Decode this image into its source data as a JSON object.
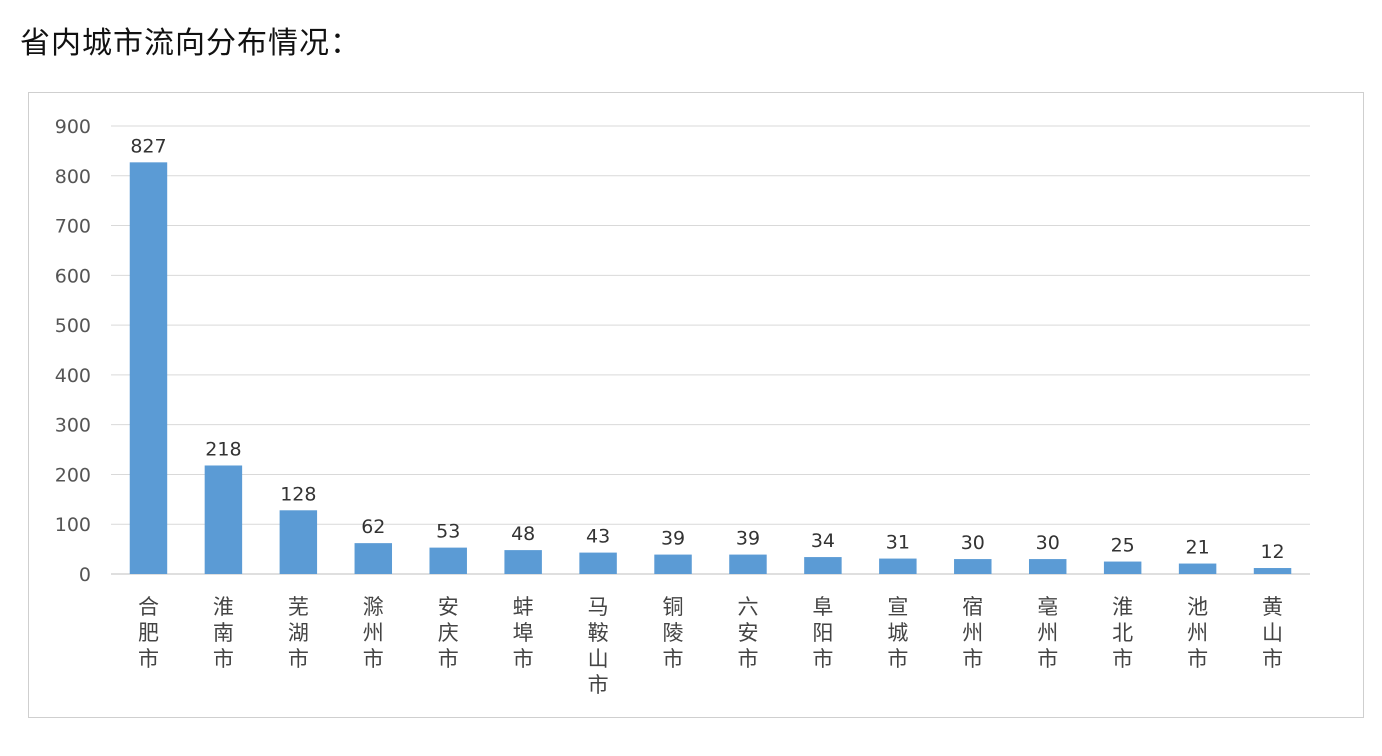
{
  "heading": "省内城市流向分布情况：",
  "colors": {
    "bar": "#5b9bd5",
    "grid": "#d9d9d9",
    "axis": "#bfbfbf"
  },
  "chart_data": {
    "type": "bar",
    "title": "",
    "xlabel": "",
    "ylabel": "",
    "ylim": [
      0,
      900
    ],
    "yticks": [
      0,
      100,
      200,
      300,
      400,
      500,
      600,
      700,
      800,
      900
    ],
    "grid": true,
    "legend": "none",
    "categories": [
      "合肥市",
      "淮南市",
      "芜湖市",
      "滁州市",
      "安庆市",
      "蚌埠市",
      "马鞍山市",
      "铜陵市",
      "六安市",
      "阜阳市",
      "宣城市",
      "宿州市",
      "亳州市",
      "淮北市",
      "池州市",
      "黄山市"
    ],
    "values": [
      827,
      218,
      128,
      62,
      53,
      48,
      43,
      39,
      39,
      34,
      31,
      30,
      30,
      25,
      21,
      12
    ]
  }
}
